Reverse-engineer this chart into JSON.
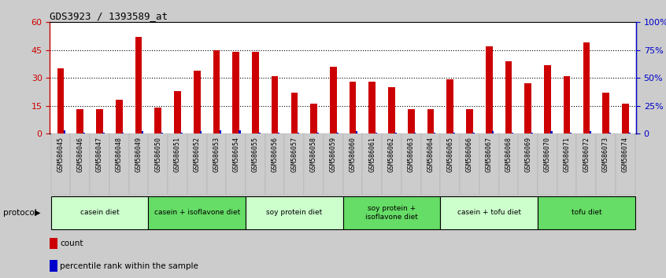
{
  "title": "GDS3923 / 1393589_at",
  "samples": [
    "GSM586045",
    "GSM586046",
    "GSM586047",
    "GSM586048",
    "GSM586049",
    "GSM586050",
    "GSM586051",
    "GSM586052",
    "GSM586053",
    "GSM586054",
    "GSM586055",
    "GSM586056",
    "GSM586057",
    "GSM586058",
    "GSM586059",
    "GSM586060",
    "GSM586061",
    "GSM586062",
    "GSM586063",
    "GSM586064",
    "GSM586065",
    "GSM586066",
    "GSM586067",
    "GSM586068",
    "GSM586069",
    "GSM586070",
    "GSM586071",
    "GSM586072",
    "GSM586073",
    "GSM586074"
  ],
  "counts": [
    35,
    13,
    13,
    18,
    52,
    14,
    23,
    34,
    45,
    44,
    44,
    31,
    22,
    16,
    36,
    28,
    28,
    25,
    13,
    13,
    29,
    13,
    47,
    39,
    27,
    37,
    31,
    49,
    22,
    16
  ],
  "percentile": [
    3,
    1,
    1,
    1,
    2,
    1,
    1,
    2,
    3,
    3,
    1,
    1,
    1,
    1,
    1,
    2,
    1,
    1,
    1,
    1,
    1,
    1,
    2,
    1,
    1,
    2,
    1,
    2,
    1,
    1
  ],
  "groups": [
    {
      "label": "casein diet",
      "start": 0,
      "end": 5,
      "color": "#ccffcc"
    },
    {
      "label": "casein + isoflavone diet",
      "start": 5,
      "end": 10,
      "color": "#66dd66"
    },
    {
      "label": "soy protein diet",
      "start": 10,
      "end": 15,
      "color": "#ccffcc"
    },
    {
      "label": "soy protein +\nisoflavone diet",
      "start": 15,
      "end": 20,
      "color": "#66dd66"
    },
    {
      "label": "casein + tofu diet",
      "start": 20,
      "end": 25,
      "color": "#ccffcc"
    },
    {
      "label": "tofu diet",
      "start": 25,
      "end": 30,
      "color": "#66dd66"
    }
  ],
  "ylim_left": [
    0,
    60
  ],
  "ylim_right": [
    0,
    100
  ],
  "yticks_left": [
    0,
    15,
    30,
    45,
    60
  ],
  "yticks_right": [
    0,
    25,
    50,
    75,
    100
  ],
  "ytick_labels_left": [
    "0",
    "15",
    "30",
    "45",
    "60"
  ],
  "ytick_labels_right": [
    "0",
    "25%",
    "50%",
    "75%",
    "100%"
  ],
  "bar_color_count": "#cc0000",
  "bar_color_pct": "#0000cc",
  "figure_bg": "#cccccc",
  "plot_bg_color": "#ffffff",
  "label_area_bg": "#cccccc",
  "legend_count": "count",
  "legend_pct": "percentile rank within the sample",
  "protocol_label": "protocol"
}
